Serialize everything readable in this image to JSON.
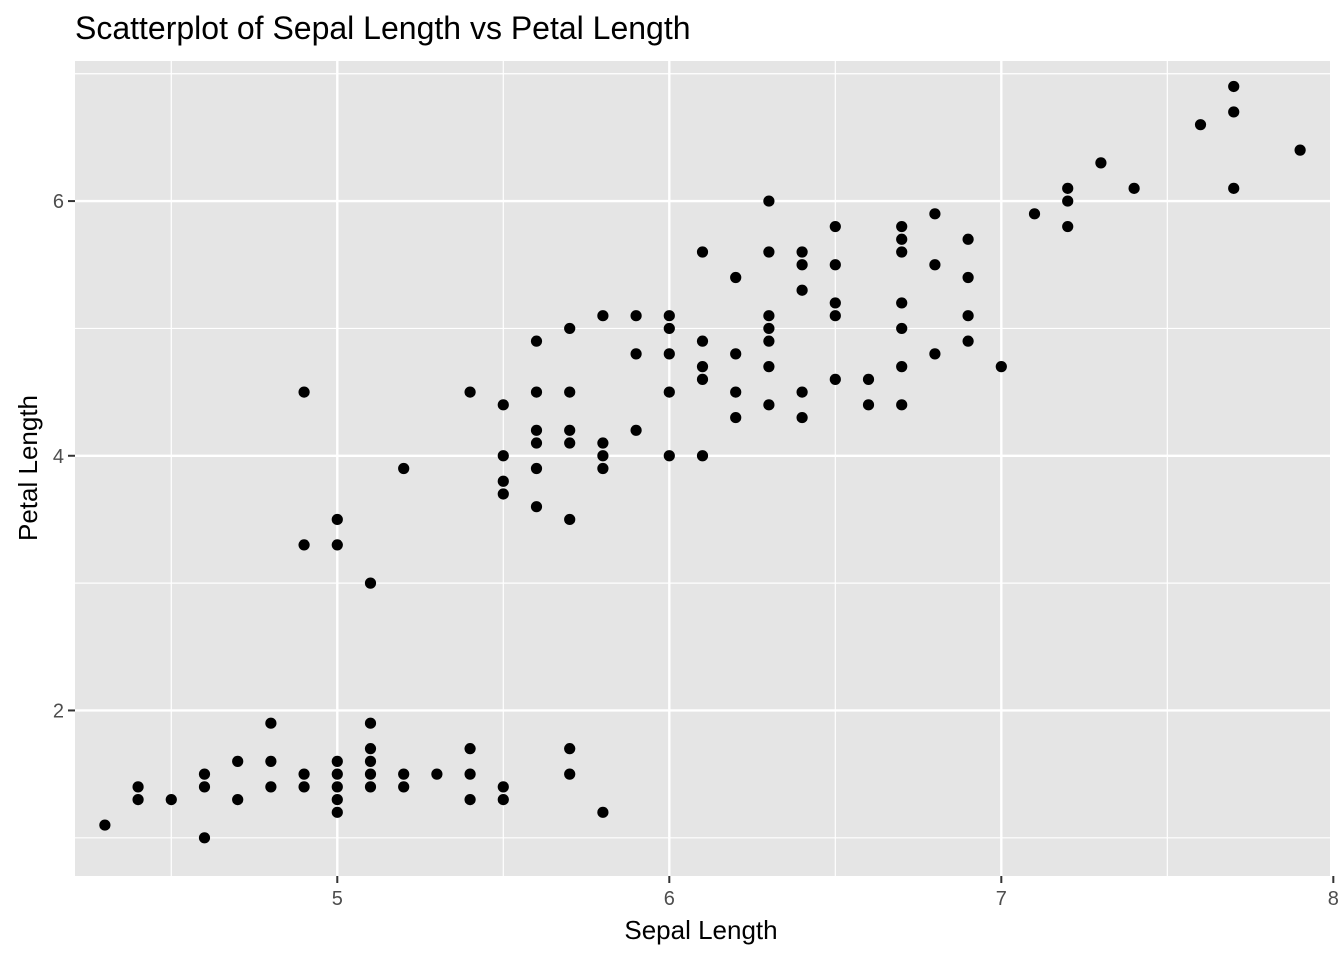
{
  "chart_data": {
    "type": "scatter",
    "title": "Scatterplot of Sepal Length vs Petal Length",
    "xlabel": "Sepal Length",
    "ylabel": "Petal Length",
    "xlim": [
      4.21,
      7.99
    ],
    "ylim": [
      0.7,
      7.1
    ],
    "x_ticks": [
      5,
      6,
      7,
      8
    ],
    "y_ticks": [
      2,
      4,
      6
    ],
    "x_minor": [
      4.5,
      5.5,
      6.5,
      7.5
    ],
    "y_minor": [
      1,
      3,
      5,
      7
    ],
    "grid": true,
    "background": "#e5e5e5",
    "grid_color": "#ffffff",
    "point_color": "#000000",
    "points": [
      [
        4.3,
        1.1
      ],
      [
        4.4,
        1.4
      ],
      [
        4.4,
        1.3
      ],
      [
        4.5,
        1.3
      ],
      [
        4.6,
        1.5
      ],
      [
        4.6,
        1.4
      ],
      [
        4.6,
        1.0
      ],
      [
        4.7,
        1.6
      ],
      [
        4.7,
        1.3
      ],
      [
        4.8,
        1.9
      ],
      [
        4.8,
        1.6
      ],
      [
        4.8,
        1.4
      ],
      [
        4.9,
        1.5
      ],
      [
        4.9,
        1.4
      ],
      [
        4.9,
        4.5
      ],
      [
        4.9,
        3.3
      ],
      [
        5.0,
        1.6
      ],
      [
        5.0,
        1.5
      ],
      [
        5.0,
        1.4
      ],
      [
        5.0,
        1.3
      ],
      [
        5.0,
        1.2
      ],
      [
        5.0,
        3.5
      ],
      [
        5.0,
        3.3
      ],
      [
        5.1,
        1.9
      ],
      [
        5.1,
        1.7
      ],
      [
        5.1,
        1.6
      ],
      [
        5.1,
        1.5
      ],
      [
        5.1,
        1.4
      ],
      [
        5.1,
        3.0
      ],
      [
        5.2,
        1.5
      ],
      [
        5.2,
        1.4
      ],
      [
        5.2,
        3.9
      ],
      [
        5.3,
        1.5
      ],
      [
        5.4,
        1.7
      ],
      [
        5.4,
        1.5
      ],
      [
        5.4,
        1.3
      ],
      [
        5.4,
        4.5
      ],
      [
        5.5,
        1.4
      ],
      [
        5.5,
        1.3
      ],
      [
        5.5,
        4.4
      ],
      [
        5.5,
        4.0
      ],
      [
        5.5,
        3.8
      ],
      [
        5.5,
        3.7
      ],
      [
        5.6,
        4.9
      ],
      [
        5.6,
        4.5
      ],
      [
        5.6,
        4.2
      ],
      [
        5.6,
        4.1
      ],
      [
        5.6,
        3.9
      ],
      [
        5.6,
        3.6
      ],
      [
        5.7,
        1.7
      ],
      [
        5.7,
        1.5
      ],
      [
        5.7,
        5.0
      ],
      [
        5.7,
        4.5
      ],
      [
        5.7,
        4.2
      ],
      [
        5.7,
        4.1
      ],
      [
        5.7,
        3.5
      ],
      [
        5.8,
        1.2
      ],
      [
        5.8,
        5.1
      ],
      [
        5.8,
        4.1
      ],
      [
        5.8,
        4.0
      ],
      [
        5.8,
        3.9
      ],
      [
        5.9,
        5.1
      ],
      [
        5.9,
        4.8
      ],
      [
        5.9,
        4.2
      ],
      [
        6.0,
        5.1
      ],
      [
        6.0,
        5.0
      ],
      [
        6.0,
        4.8
      ],
      [
        6.0,
        4.5
      ],
      [
        6.0,
        4.0
      ],
      [
        6.1,
        5.6
      ],
      [
        6.1,
        4.9
      ],
      [
        6.1,
        4.7
      ],
      [
        6.1,
        4.6
      ],
      [
        6.1,
        4.0
      ],
      [
        6.2,
        5.4
      ],
      [
        6.2,
        4.8
      ],
      [
        6.2,
        4.5
      ],
      [
        6.2,
        4.3
      ],
      [
        6.3,
        6.0
      ],
      [
        6.3,
        5.6
      ],
      [
        6.3,
        5.1
      ],
      [
        6.3,
        5.0
      ],
      [
        6.3,
        4.9
      ],
      [
        6.3,
        4.7
      ],
      [
        6.3,
        4.4
      ],
      [
        6.4,
        5.6
      ],
      [
        6.4,
        5.5
      ],
      [
        6.4,
        5.3
      ],
      [
        6.4,
        4.5
      ],
      [
        6.4,
        4.3
      ],
      [
        6.5,
        5.8
      ],
      [
        6.5,
        5.5
      ],
      [
        6.5,
        5.2
      ],
      [
        6.5,
        5.1
      ],
      [
        6.5,
        4.6
      ],
      [
        6.6,
        4.6
      ],
      [
        6.6,
        4.4
      ],
      [
        6.7,
        5.8
      ],
      [
        6.7,
        5.7
      ],
      [
        6.7,
        5.6
      ],
      [
        6.7,
        5.2
      ],
      [
        6.7,
        5.0
      ],
      [
        6.7,
        4.7
      ],
      [
        6.7,
        4.4
      ],
      [
        6.8,
        5.9
      ],
      [
        6.8,
        5.5
      ],
      [
        6.8,
        4.8
      ],
      [
        6.9,
        5.7
      ],
      [
        6.9,
        5.4
      ],
      [
        6.9,
        5.1
      ],
      [
        6.9,
        4.9
      ],
      [
        7.0,
        4.7
      ],
      [
        7.1,
        5.9
      ],
      [
        7.2,
        6.1
      ],
      [
        7.2,
        6.0
      ],
      [
        7.2,
        5.8
      ],
      [
        7.3,
        6.3
      ],
      [
        7.4,
        6.1
      ],
      [
        7.6,
        6.6
      ],
      [
        7.7,
        6.9
      ],
      [
        7.7,
        6.7
      ],
      [
        7.7,
        6.1
      ],
      [
        7.9,
        6.4
      ]
    ]
  }
}
